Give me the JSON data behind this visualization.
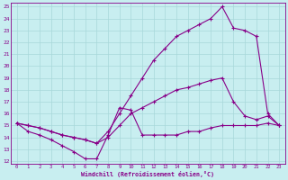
{
  "xlabel": "Windchill (Refroidissement éolien,°C)",
  "bg_color": "#c8eef0",
  "grid_color": "#a8d8da",
  "line_color": "#880088",
  "xlim": [
    -0.5,
    23.5
  ],
  "ylim": [
    11.8,
    25.3
  ],
  "xticks": [
    0,
    1,
    2,
    3,
    4,
    5,
    6,
    7,
    8,
    9,
    10,
    11,
    12,
    13,
    14,
    15,
    16,
    17,
    18,
    19,
    20,
    21,
    22,
    23
  ],
  "yticks": [
    12,
    13,
    14,
    15,
    16,
    17,
    18,
    19,
    20,
    21,
    22,
    23,
    24,
    25
  ],
  "line1_x": [
    0,
    1,
    2,
    3,
    4,
    5,
    6,
    7,
    8,
    9,
    10,
    11,
    12,
    13,
    14,
    15,
    16,
    17,
    18,
    19,
    20,
    21,
    22,
    23
  ],
  "line1_y": [
    15.2,
    15.0,
    14.8,
    14.5,
    14.2,
    14.0,
    13.8,
    13.5,
    14.5,
    16.0,
    17.5,
    19.0,
    20.5,
    21.5,
    22.5,
    23.0,
    23.5,
    24.0,
    25.0,
    23.2,
    23.0,
    22.5,
    16.0,
    15.0
  ],
  "line2_x": [
    0,
    1,
    2,
    3,
    4,
    5,
    6,
    7,
    8,
    9,
    10,
    11,
    12,
    13,
    14,
    15,
    16,
    17,
    18,
    19,
    20,
    21,
    22,
    23
  ],
  "line2_y": [
    15.2,
    15.0,
    14.8,
    14.5,
    14.2,
    14.0,
    13.8,
    13.5,
    14.0,
    15.0,
    16.0,
    16.5,
    17.0,
    17.5,
    18.0,
    18.2,
    18.5,
    18.8,
    19.0,
    17.0,
    15.8,
    15.5,
    15.8,
    15.0
  ],
  "line3_x": [
    0,
    1,
    2,
    3,
    4,
    5,
    6,
    7,
    8,
    9,
    10,
    11,
    12,
    13,
    14,
    15,
    16,
    17,
    18,
    19,
    20,
    21,
    22,
    23
  ],
  "line3_y": [
    15.2,
    14.5,
    14.2,
    13.8,
    13.3,
    12.8,
    12.2,
    12.2,
    14.2,
    16.5,
    16.3,
    14.2,
    14.2,
    14.2,
    14.2,
    14.5,
    14.5,
    14.8,
    15.0,
    15.0,
    15.0,
    15.0,
    15.2,
    15.0
  ]
}
